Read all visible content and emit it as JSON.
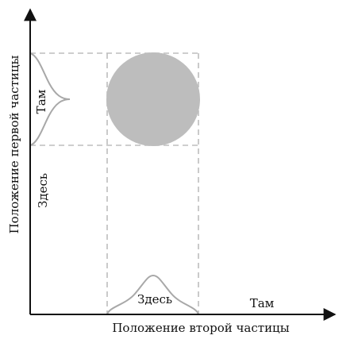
{
  "axes": {
    "y_label": "Положение первой частицы",
    "x_label": "Положение второй частицы"
  },
  "first_particle": {
    "there": "Там",
    "here": "Здесь"
  },
  "second_particle": {
    "here": "Здесь",
    "there": "Там"
  }
}
